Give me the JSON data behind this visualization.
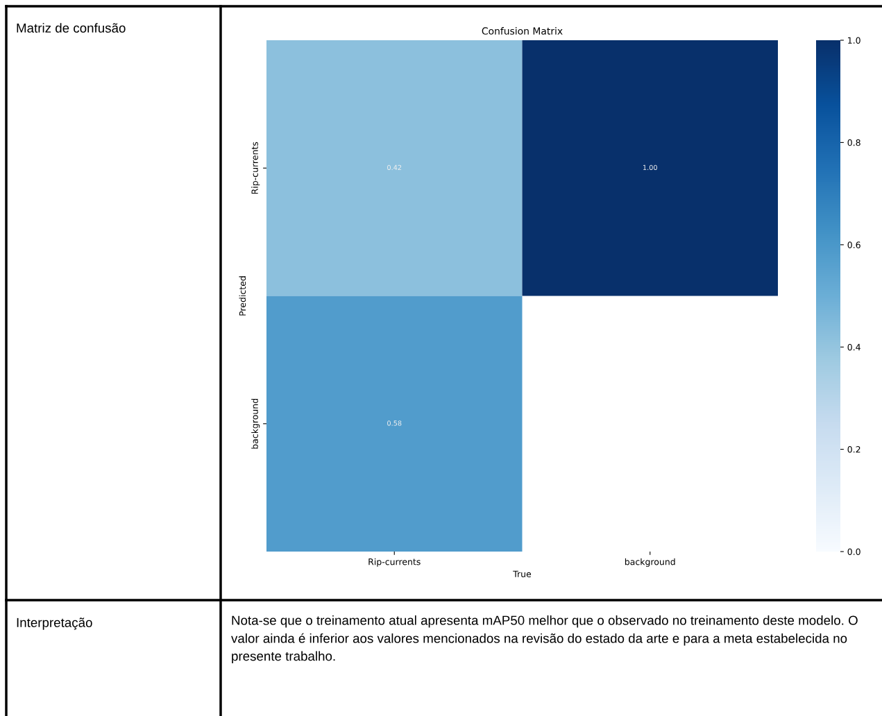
{
  "chart_data": {
    "type": "heatmap",
    "title": "Confusion Matrix",
    "xlabel": "True",
    "ylabel": "Predicted",
    "categories": [
      "Rip-currents",
      "background"
    ],
    "y_categories": [
      "Rip-currents",
      "background"
    ],
    "cells": [
      [
        0.42,
        1.0
      ],
      [
        0.58,
        null
      ]
    ],
    "cell_labels": [
      [
        "0.42",
        "1.00"
      ],
      [
        "0.58",
        null
      ]
    ],
    "clim": [
      0.0,
      1.0
    ],
    "cticks": [
      {
        "value": 0.0,
        "label": "0.0"
      },
      {
        "value": 0.2,
        "label": "0.2"
      },
      {
        "value": 0.4,
        "label": "0.4"
      },
      {
        "value": 0.6,
        "label": "0.6"
      },
      {
        "value": 0.8,
        "label": "0.8"
      },
      {
        "value": 1.0,
        "label": "1.0"
      }
    ],
    "annotations": [
      "Matriz de confusão",
      "Interpretação",
      "Nota-se que o treinamento atual apresenta mAP50 melhor que o observado no treinamento deste modelo. O valor ainda é inferior aos valores mencionados na revisão do estado da arte e para a meta estabelecida no presente trabalho."
    ]
  }
}
